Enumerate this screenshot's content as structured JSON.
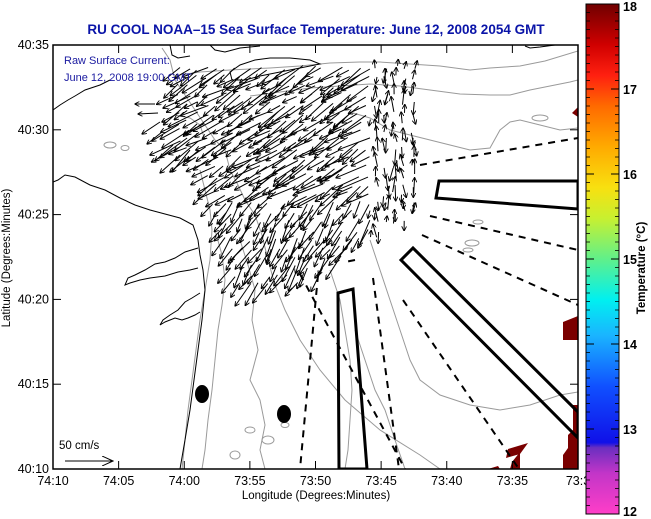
{
  "chart_data": {
    "type": "map",
    "title": "RU COOL  NOAA–15  Sea Surface Temperature:  June 12, 2008 2054 GMT",
    "xlabel": "Longitude (Degrees:Minutes)",
    "ylabel": "Latitude (Degrees:Minutes)",
    "x_ticks": [
      "74:10",
      "74:05",
      "74:00",
      "73:55",
      "73:50",
      "73:45",
      "73:40",
      "73:35",
      "73:3"
    ],
    "x_range_minutes_west": [
      74.1667,
      73.5
    ],
    "y_ticks": [
      "40:35",
      "40:30",
      "40:25",
      "40:20",
      "40:15",
      "40:10"
    ],
    "y_range": [
      40.1667,
      40.5833
    ],
    "annotation": {
      "line1": "Raw Surface Current:",
      "line2": "June 12, 2008 19:00 GMT"
    },
    "scale_arrow": {
      "label": "50 cm/s",
      "speed_cm_s": 50
    },
    "colorbar": {
      "label": "Temperature (°C)",
      "ticks": [
        "18",
        "17",
        "16",
        "15",
        "14",
        "13",
        "12"
      ],
      "range": [
        12,
        18
      ],
      "colors": [
        "#ff3ec8",
        "#7c2fd0",
        "#0a14e6",
        "#1a8cff",
        "#00f0f0",
        "#5cf08c",
        "#e6f01a",
        "#ffb400",
        "#ff5a00",
        "#ff1a10",
        "#7a0000"
      ]
    },
    "sst_patches_color": "#7a0000",
    "sst_patch_value_approx": 18,
    "features": {
      "coastline": "New Jersey coast / Raritan Bay (black)",
      "bathymetry_contours": "gray",
      "buoys": 2,
      "restricted_zones": "solid black polygons",
      "shipping_lanes": "dashed black lines"
    }
  }
}
